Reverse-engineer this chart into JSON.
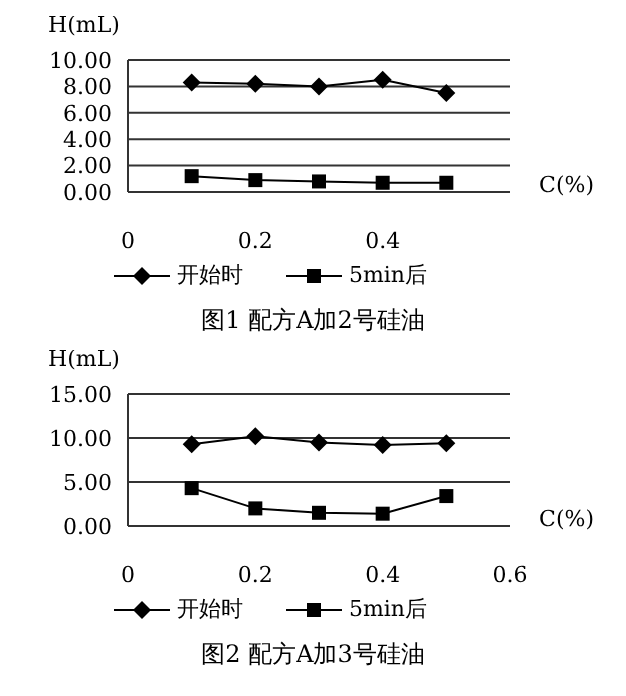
{
  "chart_data": [
    {
      "type": "line",
      "title": "图1  配方A加2号硅油",
      "xlabel": "C(%)",
      "ylabel": "H(mL)",
      "x": [
        0.1,
        0.2,
        0.3,
        0.4,
        0.5
      ],
      "series": [
        {
          "name": "开始时",
          "color": "#000000",
          "marker": "diamond",
          "values": [
            8.3,
            8.2,
            8.0,
            8.5,
            7.5
          ]
        },
        {
          "name": "5min后",
          "color": "#000000",
          "marker": "square",
          "values": [
            1.2,
            0.9,
            0.8,
            0.7,
            0.7
          ]
        }
      ],
      "xlim": [
        0,
        0.6
      ],
      "xticks": [
        0,
        0.2,
        0.4
      ],
      "ylim": [
        0,
        10
      ],
      "yticks": [
        {
          "value": 0,
          "label": "0.00"
        },
        {
          "value": 2,
          "label": "2.00"
        },
        {
          "value": 4,
          "label": "4.00"
        },
        {
          "value": 6,
          "label": "6.00"
        },
        {
          "value": 8,
          "label": "8.00"
        },
        {
          "value": 10,
          "label": "10.00"
        }
      ],
      "grid": "y",
      "legend": "bottom"
    },
    {
      "type": "line",
      "title": "图2  配方A加3号硅油",
      "xlabel": "C(%)",
      "ylabel": "H(mL)",
      "x": [
        0.1,
        0.2,
        0.3,
        0.4,
        0.5
      ],
      "series": [
        {
          "name": "开始时",
          "color": "#000000",
          "marker": "diamond",
          "values": [
            9.3,
            10.2,
            9.5,
            9.2,
            9.4
          ]
        },
        {
          "name": "5min后",
          "color": "#000000",
          "marker": "square",
          "values": [
            4.3,
            2.0,
            1.5,
            1.4,
            3.4
          ]
        }
      ],
      "xlim": [
        0,
        0.6
      ],
      "xticks": [
        0,
        0.2,
        0.4,
        0.6
      ],
      "ylim": [
        0,
        15
      ],
      "yticks": [
        {
          "value": 0,
          "label": "0.00"
        },
        {
          "value": 5,
          "label": "5.00"
        },
        {
          "value": 10,
          "label": "10.00"
        },
        {
          "value": 15,
          "label": "15.00"
        }
      ],
      "grid": "y",
      "legend": "bottom"
    }
  ]
}
